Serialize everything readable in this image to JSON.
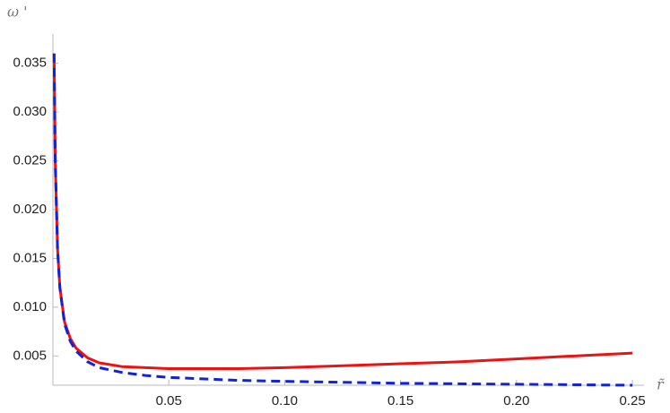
{
  "chart_data": {
    "type": "line",
    "x_label": "r̃",
    "y_label": "ω '",
    "x": [
      0.0005,
      0.001,
      0.002,
      0.003,
      0.005,
      0.0075,
      0.01,
      0.015,
      0.02,
      0.03,
      0.04,
      0.05,
      0.06,
      0.08,
      0.1,
      0.125,
      0.15,
      0.175,
      0.2,
      0.225,
      0.25
    ],
    "series": [
      {
        "color": "#ee1111",
        "dash": false,
        "values": [
          0.036,
          0.025,
          0.016,
          0.012,
          0.0085,
          0.0068,
          0.0058,
          0.0048,
          0.0043,
          0.0039,
          0.0038,
          0.0037,
          0.0037,
          0.0037,
          0.0038,
          0.004,
          0.0042,
          0.0044,
          0.0047,
          0.005,
          0.0053
        ]
      },
      {
        "color": "#1122dd",
        "dash": true,
        "values": [
          0.036,
          0.025,
          0.016,
          0.012,
          0.0083,
          0.0065,
          0.0055,
          0.0044,
          0.0038,
          0.0033,
          0.003,
          0.0028,
          0.0027,
          0.0025,
          0.0024,
          0.0023,
          0.0022,
          0.00215,
          0.0021,
          0.00205,
          0.002
        ]
      }
    ],
    "xlim": [
      0,
      0.255
    ],
    "ylim": [
      0.002,
      0.038
    ],
    "xticks": [
      0.05,
      {
        "value": 0.1,
        "label": "0.10"
      },
      0.15,
      {
        "value": 0.2,
        "label": "0.20"
      },
      0.25
    ],
    "yticks": [
      0.005,
      {
        "value": 0.01,
        "label": "0.010"
      },
      0.015,
      {
        "value": 0.02,
        "label": "0.020"
      },
      0.025,
      {
        "value": 0.03,
        "label": "0.030"
      },
      0.035
    ],
    "grid": false
  }
}
